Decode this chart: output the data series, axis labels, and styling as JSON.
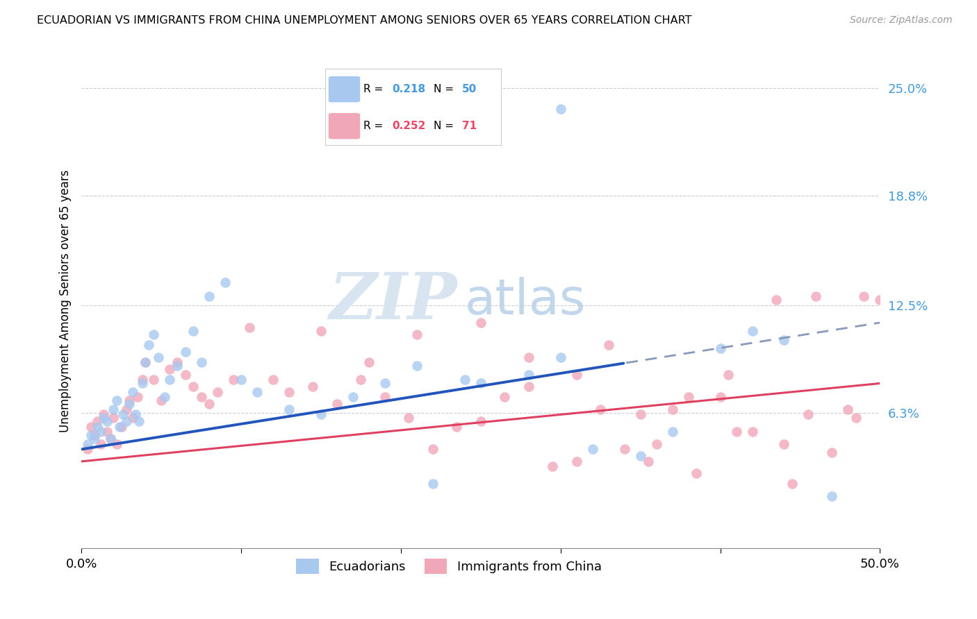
{
  "title": "ECUADORIAN VS IMMIGRANTS FROM CHINA UNEMPLOYMENT AMONG SENIORS OVER 65 YEARS CORRELATION CHART",
  "source": "Source: ZipAtlas.com",
  "ylabel": "Unemployment Among Seniors over 65 years",
  "y_tick_values": [
    6.3,
    12.5,
    18.8,
    25.0
  ],
  "y_tick_labels": [
    "6.3%",
    "12.5%",
    "18.8%",
    "25.0%"
  ],
  "xlim": [
    0.0,
    50.0
  ],
  "ylim": [
    -1.5,
    27.0
  ],
  "blue_scatter_color": "#a8c8f0",
  "pink_scatter_color": "#f0a8b8",
  "blue_line_color": "#2255bb",
  "pink_line_color": "#e04060",
  "blue_line_dash_color": "#8899bb",
  "legend_box_color": "#ffffff",
  "legend_box_edge": "#cccccc",
  "r1_val": "0.218",
  "n1_val": "50",
  "r2_val": "0.252",
  "n2_val": "71",
  "r_n_color_blue": "#4499dd",
  "r_n_color_pink": "#ee4466",
  "watermark_zip": "ZIP",
  "watermark_atlas": "atlas",
  "watermark_color": "#d8e4f0",
  "bottom_label1": "Ecuadorians",
  "bottom_label2": "Immigrants from China",
  "blue_line_solid_end": 34.0,
  "ecuadorians_x": [
    0.4,
    0.6,
    0.8,
    1.0,
    1.2,
    1.4,
    1.6,
    1.8,
    2.0,
    2.2,
    2.4,
    2.6,
    2.8,
    3.0,
    3.2,
    3.4,
    3.6,
    3.8,
    4.0,
    4.2,
    4.5,
    4.8,
    5.2,
    5.5,
    6.0,
    6.5,
    7.0,
    7.5,
    8.0,
    9.0,
    10.0,
    11.0,
    13.0,
    15.0,
    17.0,
    19.0,
    21.0,
    22.0,
    24.0,
    25.0,
    28.0,
    30.0,
    32.0,
    35.0,
    37.0,
    40.0,
    42.0,
    44.0,
    47.0,
    30.0
  ],
  "ecuadorians_y": [
    4.5,
    5.0,
    4.8,
    5.5,
    5.2,
    6.0,
    5.8,
    4.8,
    6.5,
    7.0,
    5.5,
    6.2,
    5.8,
    6.8,
    7.5,
    6.2,
    5.8,
    8.0,
    9.2,
    10.2,
    10.8,
    9.5,
    7.2,
    8.2,
    9.0,
    9.8,
    11.0,
    9.2,
    13.0,
    13.8,
    8.2,
    7.5,
    6.5,
    6.2,
    7.2,
    8.0,
    9.0,
    2.2,
    8.2,
    8.0,
    8.5,
    23.8,
    4.2,
    3.8,
    5.2,
    10.0,
    11.0,
    10.5,
    1.5,
    9.5
  ],
  "china_x": [
    0.4,
    0.6,
    0.8,
    1.0,
    1.2,
    1.4,
    1.6,
    1.8,
    2.0,
    2.2,
    2.5,
    2.8,
    3.0,
    3.2,
    3.5,
    3.8,
    4.0,
    4.5,
    5.0,
    5.5,
    6.0,
    6.5,
    7.0,
    7.5,
    8.0,
    8.5,
    9.5,
    10.5,
    12.0,
    13.0,
    14.5,
    16.0,
    17.5,
    19.0,
    20.5,
    22.0,
    23.5,
    25.0,
    26.5,
    28.0,
    29.5,
    31.0,
    32.5,
    34.0,
    35.5,
    37.0,
    38.5,
    40.0,
    42.0,
    44.0,
    45.5,
    47.0,
    49.0,
    33.0,
    35.0,
    38.0,
    40.5,
    43.5,
    46.0,
    48.5,
    50.0,
    15.0,
    18.0,
    21.0,
    25.0,
    28.0,
    31.0,
    36.0,
    41.0,
    44.5,
    48.0
  ],
  "china_y": [
    4.2,
    5.5,
    5.0,
    5.8,
    4.5,
    6.2,
    5.2,
    4.8,
    6.0,
    4.5,
    5.5,
    6.5,
    7.0,
    6.0,
    7.2,
    8.2,
    9.2,
    8.2,
    7.0,
    8.8,
    9.2,
    8.5,
    7.8,
    7.2,
    6.8,
    7.5,
    8.2,
    11.2,
    8.2,
    7.5,
    7.8,
    6.8,
    8.2,
    7.2,
    6.0,
    4.2,
    5.5,
    5.8,
    7.2,
    7.8,
    3.2,
    3.5,
    6.5,
    4.2,
    3.5,
    6.5,
    2.8,
    7.2,
    5.2,
    4.5,
    6.2,
    4.0,
    13.0,
    10.2,
    6.2,
    7.2,
    8.5,
    12.8,
    13.0,
    6.0,
    12.8,
    11.0,
    9.2,
    10.8,
    11.5,
    9.5,
    8.5,
    4.5,
    5.2,
    2.2,
    6.5
  ]
}
